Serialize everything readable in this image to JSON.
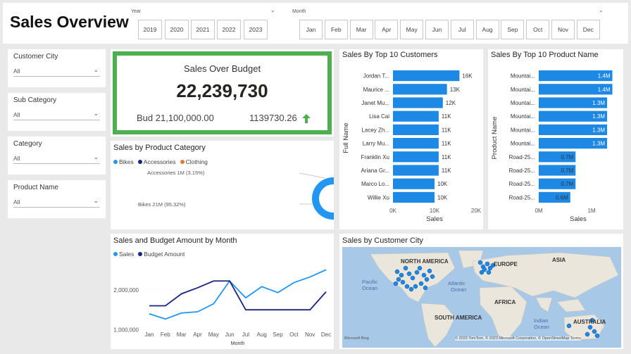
{
  "header": {
    "title": "Sales Overview",
    "year_label": "Year",
    "years": [
      "2019",
      "2020",
      "2021",
      "2022",
      "2023"
    ],
    "month_label": "Month",
    "months": [
      "Jan",
      "Feb",
      "Mar",
      "Apr",
      "May",
      "Jun",
      "Jul",
      "Aug",
      "Sep",
      "Oct",
      "Nov",
      "Dec"
    ]
  },
  "filters": [
    {
      "label": "Customer City",
      "value": "All"
    },
    {
      "label": "Sub Category",
      "value": "All"
    },
    {
      "label": "Category",
      "value": "All"
    },
    {
      "label": "Product Name",
      "value": "All"
    }
  ],
  "kpi": {
    "title": "Sales Over Budget",
    "value": "22,239,730",
    "budget": "Bud 21,100,000.00",
    "diff": "1139730.26",
    "border_color": "#4caf50",
    "arrow_color": "#4caf50"
  },
  "colors": {
    "sales": "#2196f3",
    "budget": "#1a237e",
    "clothing": "#e07b39",
    "bar": "#1e88e5"
  },
  "charts": {
    "category": {
      "title": "Sales by Product Category",
      "legend": [
        "Bikes",
        "Accessories",
        "Clothing"
      ],
      "label_accessories": "Accessories 1M (3.15%)",
      "label_bikes": "Bikes 21M (95.32%)"
    },
    "customers": {
      "title": "Sales By Top 10 Customers",
      "ylabel": "Full Name",
      "xlabel": "Sales",
      "ticks": [
        "0K",
        "10K",
        "20K"
      ]
    },
    "products": {
      "title": "Sales By Top 10 Product Name",
      "ylabel": "Product Name",
      "xlabel": "Sales",
      "ticks": [
        "0M",
        "1M"
      ]
    },
    "monthly": {
      "title": "Sales and Budget Amount by Month",
      "legend_sales": "Sales",
      "legend_budget": "Budget Amount",
      "xlabel": "Month",
      "yticks": [
        "2,000,000",
        "1,000,000"
      ]
    },
    "map": {
      "title": "Sales by Customer City",
      "labels": [
        "NORTH AMERICA",
        "EUROPE",
        "ASIA",
        "AFRICA",
        "SOUTH AMERICA",
        "AUSTRALIA"
      ],
      "oceans": [
        "Pacific",
        "Ocean",
        "Atlantic",
        "Ocean",
        "Indian",
        "Ocean"
      ],
      "attribution": "© 2023 TomTom, © 2023 Microsoft Corporation, © OpenStreetMap  Terms",
      "brand": "Microsoft Bing"
    }
  },
  "chart_data": [
    {
      "type": "pie",
      "title": "Sales by Product Category",
      "categories": [
        "Bikes",
        "Accessories",
        "Clothing"
      ],
      "values": [
        95.32,
        3.15,
        1.53
      ]
    },
    {
      "type": "bar",
      "title": "Sales By Top 10 Customers",
      "categories": [
        "Jordan T...",
        "Maurice ...",
        "Janet Mu...",
        "Lisa Cai",
        "Lacey Zh...",
        "Larry Mu...",
        "Franklin Xu",
        "Ariana Gr...",
        "Marco Lo...",
        "Willie Xu"
      ],
      "values": [
        16,
        13,
        12,
        11,
        11,
        11,
        11,
        11,
        10,
        10
      ],
      "value_labels": [
        "16K",
        "13K",
        "12K",
        "11K",
        "11K",
        "11K",
        "11K",
        "11K",
        "10K",
        "10K"
      ],
      "xlim": [
        0,
        20
      ]
    },
    {
      "type": "bar",
      "title": "Sales By Top 10 Product Name",
      "categories": [
        "Mountai...",
        "Mountai...",
        "Mountai...",
        "Mountai...",
        "Mountai...",
        "Mountai...",
        "Road-25...",
        "Road-25...",
        "Road-25...",
        "Road-25..."
      ],
      "values": [
        1.4,
        1.4,
        1.3,
        1.3,
        1.3,
        1.3,
        0.7,
        0.7,
        0.7,
        0.6
      ],
      "value_labels": [
        "1.4M",
        "1.4M",
        "1.3M",
        "1.3M",
        "1.3M",
        "1.3M",
        "0.7M",
        "0.7M",
        "0.7M",
        "0.6M"
      ],
      "xlim": [
        0,
        1.5
      ]
    },
    {
      "type": "line",
      "title": "Sales and Budget Amount by Month",
      "categories": [
        "Jan",
        "Feb",
        "Mar",
        "Apr",
        "May",
        "Jun",
        "Jul",
        "Aug",
        "Sep",
        "Oct",
        "Nov",
        "Dec"
      ],
      "series": [
        {
          "name": "Sales",
          "values": [
            1400000,
            1270000,
            1420000,
            1450000,
            1650000,
            2220000,
            1800000,
            2080000,
            1930000,
            2180000,
            2320000,
            2500000
          ]
        },
        {
          "name": "Budget Amount",
          "values": [
            1600000,
            1600000,
            1900000,
            2050000,
            2220000,
            2220000,
            1500000,
            1500000,
            1500000,
            1500000,
            1500000,
            1950000
          ]
        }
      ],
      "ylim": [
        800000,
        2700000
      ]
    }
  ]
}
